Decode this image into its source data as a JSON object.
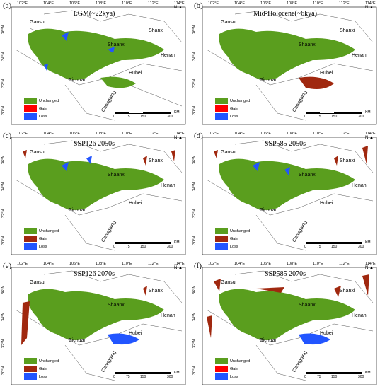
{
  "panels": [
    {
      "label": "(a)",
      "title": "LGM(~22kya)"
    },
    {
      "label": "(b)",
      "title": "Mid-Holocene(~6kya)"
    },
    {
      "label": "(c)",
      "title": "SSP126  2050s"
    },
    {
      "label": "(d)",
      "title": "SSP585  2050s"
    },
    {
      "label": "(e)",
      "title": "SSP126  2070s"
    },
    {
      "label": "(f)",
      "title": "SSP585  2070s"
    }
  ],
  "longitudes": [
    "102°E",
    "104°E",
    "106°E",
    "108°E",
    "110°E",
    "112°E",
    "114°E"
  ],
  "latitudes": [
    "36°N",
    "34°N",
    "32°N",
    "30°N"
  ],
  "provinces": {
    "gansu": "Gansu",
    "shanxi": "Shanxi",
    "shaanxi": "Shaanxi",
    "henan": "Henan",
    "sichuan": "Sichuan",
    "hubei": "Hubei",
    "chongqing": "Chongqing"
  },
  "legend": {
    "unchanged": "Unchanged",
    "gain": "Gain",
    "loss": "Loss"
  },
  "scale": {
    "t0": "0",
    "t1": "75",
    "t2": "150",
    "t3": "300",
    "unit": "KM"
  },
  "north": "N",
  "colors": {
    "unchanged": "#5a9e1e",
    "gain_red": "#ff0000",
    "gain_brown": "#a0280f",
    "loss": "#2255ff"
  }
}
